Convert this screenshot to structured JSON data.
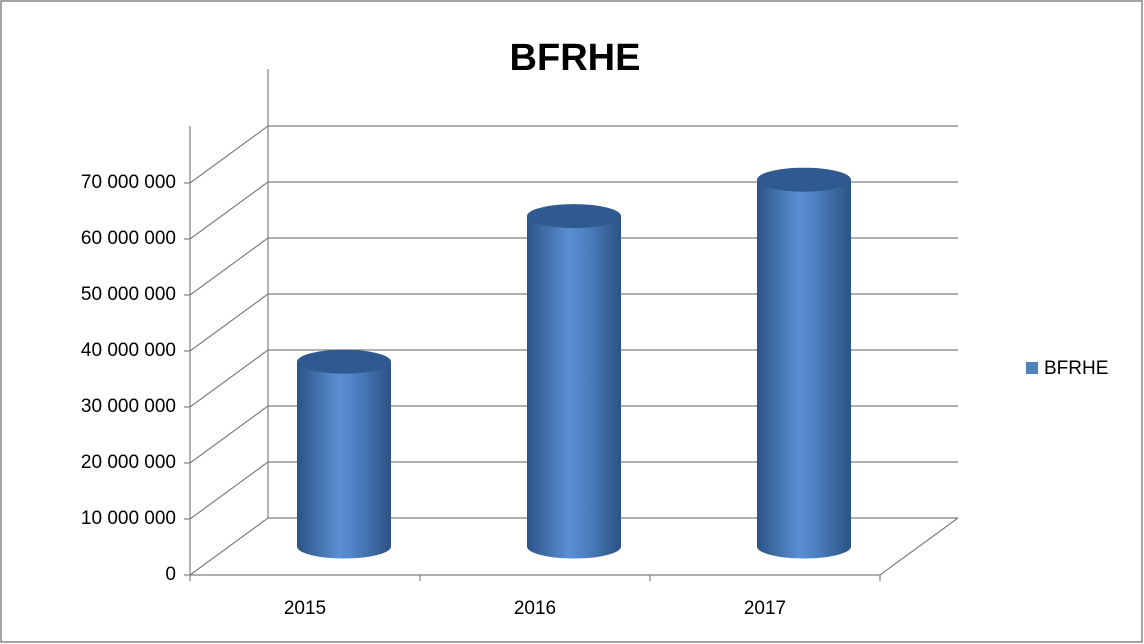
{
  "chart_data": {
    "type": "bar",
    "title": "BFRHE",
    "categories": [
      "2015",
      "2016",
      "2017"
    ],
    "series": [
      {
        "name": "BFRHE",
        "color": "#4f81bd",
        "values": [
          33000000,
          59000000,
          65500000
        ]
      }
    ],
    "ylim": [
      0,
      70000000
    ],
    "yticks": [
      0,
      {
        "value": 10000000,
        "label": "10 000 000"
      },
      {
        "value": 20000000,
        "label": "20 000 000"
      },
      {
        "value": 30000000,
        "label": "30 000 000"
      },
      {
        "value": 40000000,
        "label": "40 000 000"
      },
      {
        "value": 50000000,
        "label": "50 000 000"
      },
      {
        "value": 60000000,
        "label": "60 000 000"
      },
      {
        "value": 70000000,
        "label": "70 000 000"
      }
    ],
    "grid": true,
    "legend": "right"
  }
}
